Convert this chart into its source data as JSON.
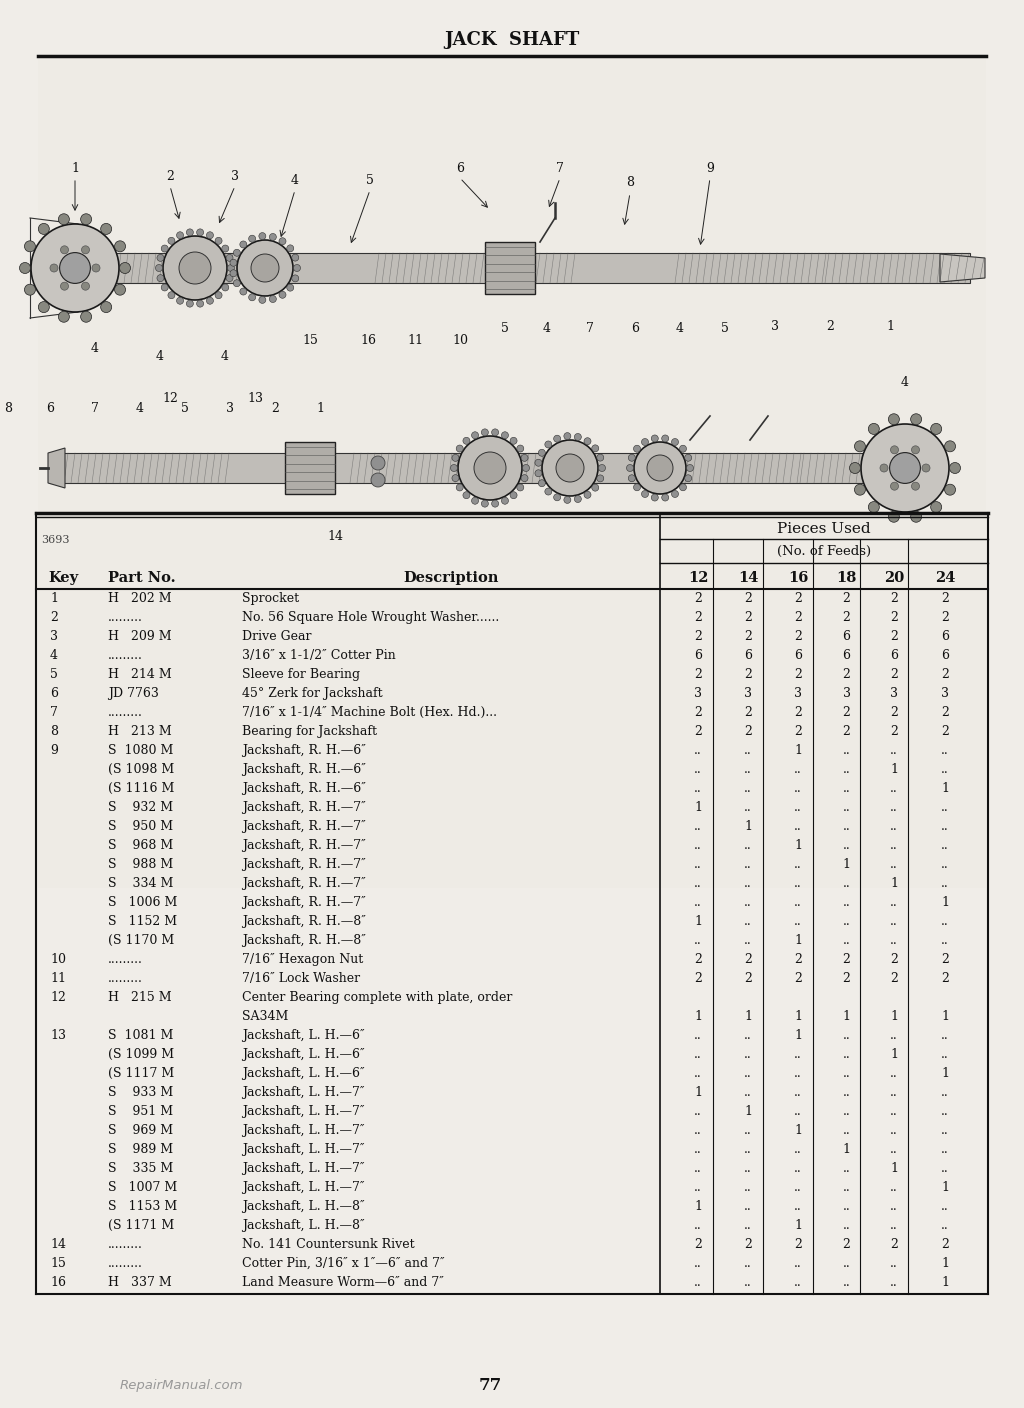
{
  "title": "JACK  SHAFT",
  "page_number": "77",
  "watermark": "RepairManual.com",
  "bg_color": "#f0ede8",
  "table_rows": [
    [
      "1",
      "H   202 M",
      "Sprocket",
      "2",
      "2",
      "2",
      "2",
      "2",
      "2"
    ],
    [
      "2",
      ".........",
      "No. 56 Square Hole Wrought Washer......",
      "2",
      "2",
      "2",
      "2",
      "2",
      "2"
    ],
    [
      "3",
      "H   209 M",
      "Drive Gear",
      "2",
      "2",
      "2",
      "6",
      "2",
      "6"
    ],
    [
      "4",
      ".........",
      "3/16″ x 1-1/2″ Cotter Pin",
      "6",
      "6",
      "6",
      "6",
      "6",
      "6"
    ],
    [
      "5",
      "H   214 M",
      "Sleeve for Bearing",
      "2",
      "2",
      "2",
      "2",
      "2",
      "2"
    ],
    [
      "6",
      "JD 7763",
      "45° Zerk for Jackshaft",
      "3",
      "3",
      "3",
      "3",
      "3",
      "3"
    ],
    [
      "7",
      ".........",
      "7/16″ x 1-1/4″ Machine Bolt (Hex. Hd.)...",
      "2",
      "2",
      "2",
      "2",
      "2",
      "2"
    ],
    [
      "8",
      "H   213 M",
      "Bearing for Jackshaft",
      "2",
      "2",
      "2",
      "2",
      "2",
      "2"
    ],
    [
      "9",
      "S  1080 M",
      "Jackshaft, R. H.—6″",
      "..",
      "..",
      "1",
      "..",
      "..",
      ".."
    ],
    [
      "",
      "(S 1098 M",
      "Jackshaft, R. H.—6″",
      "..",
      "..",
      "..",
      "..",
      "1",
      ".."
    ],
    [
      "",
      "(S 1116 M",
      "Jackshaft, R. H.—6″",
      "..",
      "..",
      "..",
      "..",
      "..",
      "1"
    ],
    [
      "",
      "S    932 M",
      "Jackshaft, R. H.—7″",
      "1",
      "..",
      "..",
      "..",
      "..",
      ".."
    ],
    [
      "",
      "S    950 M",
      "Jackshaft, R. H.—7″",
      "..",
      "1",
      "..",
      "..",
      "..",
      ".."
    ],
    [
      "",
      "S    968 M",
      "Jackshaft, R. H.—7″",
      "..",
      "..",
      "1",
      "..",
      "..",
      ".."
    ],
    [
      "",
      "S    988 M",
      "Jackshaft, R. H.—7″",
      "..",
      "..",
      "..",
      "1",
      "..",
      ".."
    ],
    [
      "",
      "S    334 M",
      "Jackshaft, R. H.—7″",
      "..",
      "..",
      "..",
      "..",
      "1",
      ".."
    ],
    [
      "",
      "S   1006 M",
      "Jackshaft, R. H.—7″",
      "..",
      "..",
      "..",
      "..",
      "..",
      "1"
    ],
    [
      "",
      "S   1152 M",
      "Jackshaft, R. H.—8″",
      "1",
      "..",
      "..",
      "..",
      "..",
      ".."
    ],
    [
      "",
      "(S 1170 M",
      "Jackshaft, R. H.—8″",
      "..",
      "..",
      "1",
      "..",
      "..",
      ".."
    ],
    [
      "10",
      ".........",
      "7/16″ Hexagon Nut",
      "2",
      "2",
      "2",
      "2",
      "2",
      "2"
    ],
    [
      "11",
      ".........",
      "7/16″ Lock Washer",
      "2",
      "2",
      "2",
      "2",
      "2",
      "2"
    ],
    [
      "12",
      "H   215 M",
      "Center Bearing complete with plate, order",
      "",
      "",
      "",
      "",
      "",
      ""
    ],
    [
      "",
      "",
      "SA34M",
      "1",
      "1",
      "1",
      "1",
      "1",
      "1"
    ],
    [
      "13",
      "S  1081 M",
      "Jackshaft, L. H.—6″",
      "..",
      "..",
      "1",
      "..",
      "..",
      ".."
    ],
    [
      "",
      "(S 1099 M",
      "Jackshaft, L. H.—6″",
      "..",
      "..",
      "..",
      "..",
      "1",
      ".."
    ],
    [
      "",
      "(S 1117 M",
      "Jackshaft, L. H.—6″",
      "..",
      "..",
      "..",
      "..",
      "..",
      "1"
    ],
    [
      "",
      "S    933 M",
      "Jackshaft, L. H.—7″",
      "1",
      "..",
      "..",
      "..",
      "..",
      ".."
    ],
    [
      "",
      "S    951 M",
      "Jackshaft, L. H.—7″",
      "..",
      "1",
      "..",
      "..",
      "..",
      ".."
    ],
    [
      "",
      "S    969 M",
      "Jackshaft, L. H.—7″",
      "..",
      "..",
      "1",
      "..",
      "..",
      ".."
    ],
    [
      "",
      "S    989 M",
      "Jackshaft, L. H.—7″",
      "..",
      "..",
      "..",
      "1",
      "..",
      ".."
    ],
    [
      "",
      "S    335 M",
      "Jackshaft, L. H.—7″",
      "..",
      "..",
      "..",
      "..",
      "1",
      ".."
    ],
    [
      "",
      "S   1007 M",
      "Jackshaft, L. H.—7″",
      "..",
      "..",
      "..",
      "..",
      "..",
      "1"
    ],
    [
      "",
      "S   1153 M",
      "Jackshaft, L. H.—8″",
      "1",
      "..",
      "..",
      "..",
      "..",
      ".."
    ],
    [
      "",
      "(S 1171 M",
      "Jackshaft, L. H.—8″",
      "..",
      "..",
      "1",
      "..",
      "..",
      ".."
    ],
    [
      "14",
      ".........",
      "No. 141 Countersunk Rivet",
      "2",
      "2",
      "2",
      "2",
      "2",
      "2"
    ],
    [
      "15",
      ".........",
      "Cotter Pin, 3/16″ x 1″—6″ and 7″",
      "..",
      "..",
      "..",
      "..",
      "..",
      "1"
    ],
    [
      "16",
      "H   337 M",
      "Land Measure Worm—6″ and 7″",
      "..",
      "..",
      "..",
      "..",
      "..",
      "1"
    ]
  ]
}
